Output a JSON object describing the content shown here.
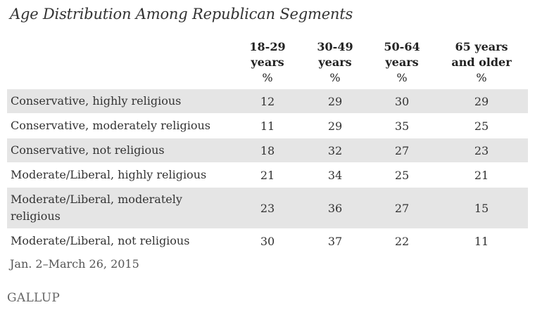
{
  "chart_data": {
    "type": "table",
    "title": "Age Distribution Among Republican Segments",
    "columns": [
      {
        "lines": [
          "18-29",
          "years"
        ],
        "unit": "%"
      },
      {
        "lines": [
          "30-49",
          "years"
        ],
        "unit": "%"
      },
      {
        "lines": [
          "50-64",
          "years"
        ],
        "unit": "%"
      },
      {
        "lines": [
          "65 years",
          "and older"
        ],
        "unit": "%"
      }
    ],
    "rows": [
      {
        "label": "Conservative, highly religious",
        "values": [
          "12",
          "29",
          "30",
          "29"
        ]
      },
      {
        "label": "Conservative, moderately religious",
        "values": [
          "11",
          "29",
          "35",
          "25"
        ]
      },
      {
        "label": "Conservative, not religious",
        "values": [
          "18",
          "32",
          "27",
          "23"
        ]
      },
      {
        "label": "Moderate/Liberal, highly religious",
        "values": [
          "21",
          "34",
          "25",
          "21"
        ]
      },
      {
        "label": "Moderate/Liberal, moderately religious",
        "values": [
          "23",
          "36",
          "27",
          "15"
        ]
      },
      {
        "label": "Moderate/Liberal, not religious",
        "values": [
          "30",
          "37",
          "22",
          "11"
        ]
      }
    ],
    "footnote": "Jan. 2–March 26, 2015",
    "source": "GALLUP"
  }
}
